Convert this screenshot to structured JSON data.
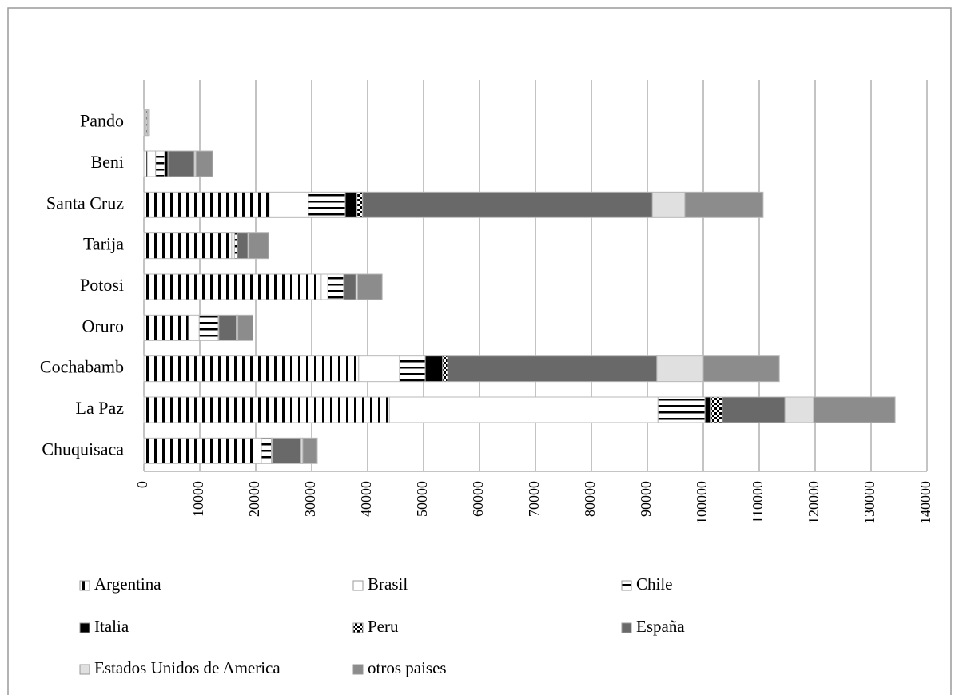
{
  "chart_data": {
    "type": "stacked-bar-horizontal",
    "categories": [
      "Chuquisaca",
      "La Paz",
      "Cochabamb",
      "Oruro",
      "Potosi",
      "Tarija",
      "Santa Cruz",
      "Beni",
      "Pando"
    ],
    "series": [
      {
        "name": "Argentina",
        "color": "#000000",
        "pattern": "vertical-lines",
        "values": [
          19500,
          43900,
          38400,
          8000,
          31700,
          15700,
          22400,
          600,
          100
        ]
      },
      {
        "name": "Brasil",
        "color": "#ffffff",
        "pattern": "none",
        "values": [
          1500,
          48000,
          7300,
          1900,
          1200,
          500,
          7000,
          1500,
          300
        ]
      },
      {
        "name": "Chile",
        "color": "#000000",
        "pattern": "horizontal-lines",
        "values": [
          1800,
          8400,
          4600,
          3400,
          2800,
          500,
          6600,
          1600,
          200
        ]
      },
      {
        "name": "Italia",
        "color": "#000000",
        "pattern": "none",
        "values": [
          100,
          1100,
          3100,
          100,
          100,
          0,
          2100,
          600,
          0
        ]
      },
      {
        "name": "Peru",
        "color": "#000000",
        "pattern": "checker",
        "values": [
          100,
          2000,
          900,
          0,
          0,
          0,
          1000,
          0,
          0
        ]
      },
      {
        "name": "España",
        "color": "#696969",
        "pattern": "none",
        "values": [
          5100,
          11200,
          37400,
          3100,
          2100,
          1900,
          51800,
          4700,
          100
        ]
      },
      {
        "name": "Estados Unidos de America",
        "color": "#e0e0e0",
        "pattern": "none",
        "values": [
          300,
          5100,
          8300,
          300,
          300,
          200,
          5800,
          300,
          200
        ]
      },
      {
        "name": "otros paises",
        "color": "#8c8c8c",
        "pattern": "none",
        "values": [
          2600,
          14600,
          13600,
          2700,
          4400,
          3500,
          14000,
          3000,
          100
        ]
      }
    ],
    "xlim": [
      0,
      140000
    ],
    "xticks": [
      0,
      10000,
      20000,
      30000,
      40000,
      50000,
      60000,
      70000,
      80000,
      90000,
      100000,
      110000,
      120000,
      130000,
      140000
    ],
    "grid": true,
    "legend": "bottom"
  }
}
